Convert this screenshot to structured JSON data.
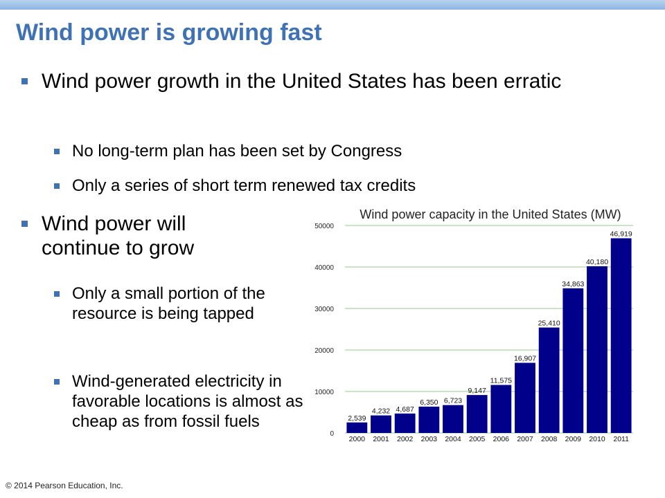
{
  "slide": {
    "title": "Wind power is growing fast",
    "bullets": [
      "Wind power growth in the United States has been erratic",
      "No long-term plan has been set by Congress",
      "Only a series of short term renewed tax credits",
      "Wind power will continue to grow",
      "Only a small portion of the resource is being tapped",
      "Wind-generated electricity in favorable locations is almost as cheap as from fossil fuels"
    ],
    "footer": "© 2014 Pearson Education, Inc.",
    "accent_color": "#3f72b5"
  },
  "chart_data": {
    "type": "bar",
    "title": "Wind power capacity in the United States (MW)",
    "categories": [
      "2000",
      "2001",
      "2002",
      "2003",
      "2004",
      "2005",
      "2006",
      "2007",
      "2008",
      "2009",
      "2010",
      "2011"
    ],
    "values": [
      2539,
      4232,
      4687,
      6350,
      6723,
      9147,
      11575,
      16907,
      25410,
      34863,
      40180,
      46919
    ],
    "data_labels": [
      "2,539",
      "4,232",
      "4,687",
      "6,350",
      "6,723",
      "9,147",
      "11,575",
      "16,907",
      "25,410",
      "34,863",
      "40,180",
      "46,919"
    ],
    "ylim": [
      0,
      50000
    ],
    "yticks": [
      0,
      10000,
      20000,
      30000,
      40000,
      50000
    ],
    "grid": true,
    "bar_color": "#00008b",
    "grid_color": "#8fcf8f"
  }
}
